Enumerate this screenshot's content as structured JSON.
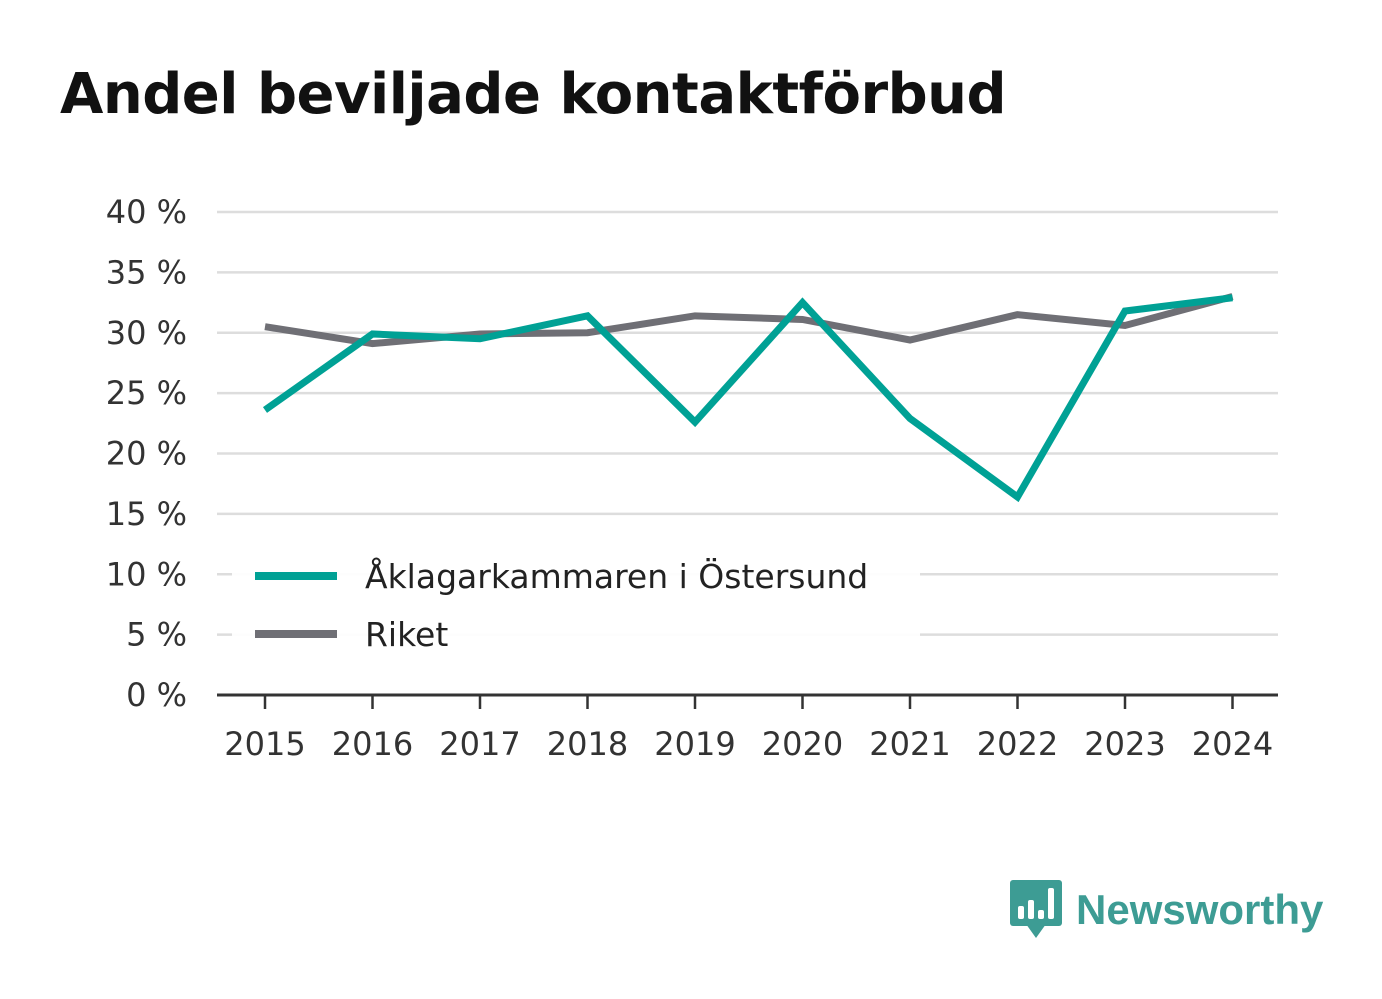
{
  "chart_data": {
    "type": "line",
    "title": "Andel beviljade kontaktförbud",
    "categories": [
      "2015",
      "2016",
      "2017",
      "2018",
      "2019",
      "2020",
      "2021",
      "2022",
      "2023",
      "2024"
    ],
    "series": [
      {
        "name": "Åklagarkammaren i Östersund",
        "color": "#00a195",
        "values": [
          23.6,
          29.9,
          29.5,
          31.4,
          22.6,
          32.5,
          22.9,
          16.4,
          31.8,
          32.9
        ]
      },
      {
        "name": "Riket",
        "color": "#6f6f75",
        "values": [
          30.5,
          29.1,
          29.9,
          30.0,
          31.4,
          31.1,
          29.4,
          31.5,
          30.6,
          33.0
        ]
      }
    ],
    "ylim": [
      0,
      40
    ],
    "yticks": [
      0,
      5,
      10,
      15,
      20,
      25,
      30,
      35,
      40
    ],
    "ytick_labels": [
      "0 %",
      "5 %",
      "10 %",
      "15 %",
      "20 %",
      "25 %",
      "30 %",
      "35 %",
      "40 %"
    ],
    "xlabel": "",
    "ylabel": "",
    "grid": true,
    "legend_position": "bottom-left"
  },
  "branding": {
    "name": "Newsworthy",
    "icon": "newsworthy-logo-icon",
    "color": "#3d9c94"
  }
}
